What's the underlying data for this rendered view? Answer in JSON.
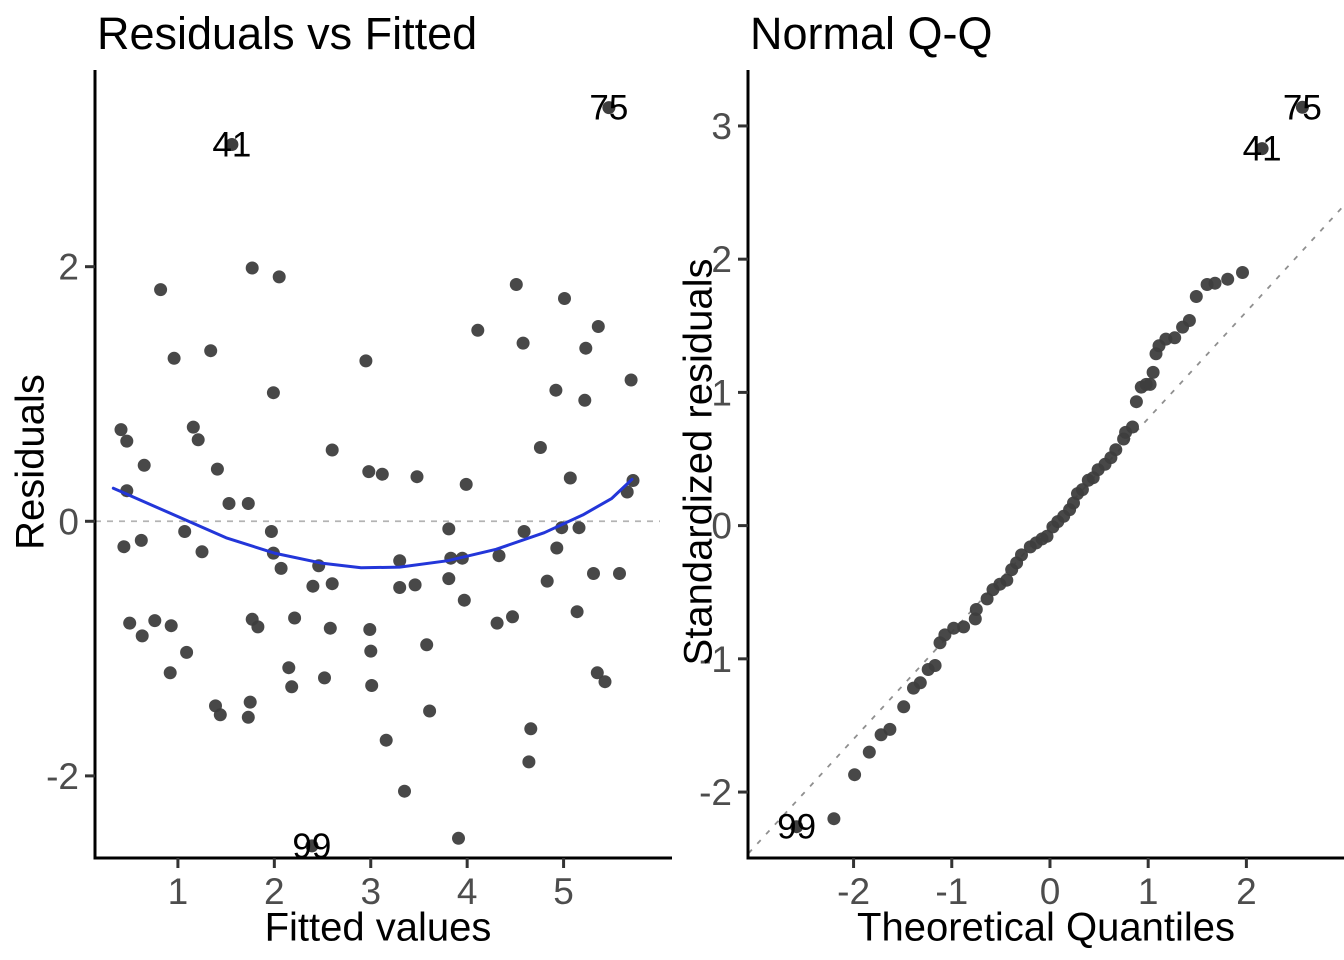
{
  "page": {
    "background": "#ffffff"
  },
  "colors": {
    "point": "#3e3e3e",
    "smooth_line": "#2336d9",
    "zero_dash": "#b3b3b3",
    "qq_ref_dash": "#8f8f8f",
    "axis_line": "#000000",
    "tick_mark": "#333333",
    "tick_label": "#4d4d4d",
    "title_text": "#000000",
    "point_label": "#000000"
  },
  "chart_data": [
    {
      "type": "scatter",
      "title": "Residuals vs Fitted",
      "xlabel": "Fitted values",
      "ylabel": "Residuals",
      "xlim": [
        0.14,
        6.0
      ],
      "ylim": [
        -2.645,
        3.545
      ],
      "x_ticks": [
        1,
        2,
        3,
        4,
        5
      ],
      "y_ticks": [
        -2,
        0,
        2
      ],
      "grid": false,
      "legend": "none",
      "point_color": "#3e3e3e",
      "points": [
        [
          1.77,
          1.99
        ],
        [
          2.05,
          1.92
        ],
        [
          0.82,
          1.82
        ],
        [
          0.96,
          1.28
        ],
        [
          1.34,
          1.34
        ],
        [
          1.99,
          1.01
        ],
        [
          2.95,
          1.26
        ],
        [
          4.11,
          1.5
        ],
        [
          4.51,
          1.86
        ],
        [
          4.58,
          1.4
        ],
        [
          4.92,
          1.03
        ],
        [
          5.01,
          1.75
        ],
        [
          5.23,
          1.36
        ],
        [
          5.36,
          1.53
        ],
        [
          5.7,
          1.11
        ],
        [
          5.22,
          0.95
        ],
        [
          4.76,
          0.58
        ],
        [
          5.07,
          0.34
        ],
        [
          5.72,
          0.32
        ],
        [
          5.66,
          0.23
        ],
        [
          0.41,
          0.72
        ],
        [
          1.16,
          0.74
        ],
        [
          0.47,
          0.63
        ],
        [
          1.21,
          0.64
        ],
        [
          0.65,
          0.44
        ],
        [
          1.41,
          0.41
        ],
        [
          0.47,
          0.24
        ],
        [
          2.6,
          0.56
        ],
        [
          2.98,
          0.39
        ],
        [
          3.12,
          0.37
        ],
        [
          3.48,
          0.35
        ],
        [
          3.99,
          0.29
        ],
        [
          3.81,
          -0.06
        ],
        [
          3.83,
          -0.29
        ],
        [
          3.3,
          -0.31
        ],
        [
          1.73,
          0.14
        ],
        [
          1.53,
          0.14
        ],
        [
          1.07,
          -0.08
        ],
        [
          0.44,
          -0.2
        ],
        [
          0.62,
          -0.15
        ],
        [
          1.97,
          -0.08
        ],
        [
          1.99,
          -0.25
        ],
        [
          1.25,
          -0.24
        ],
        [
          2.07,
          -0.37
        ],
        [
          2.46,
          -0.35
        ],
        [
          2.4,
          -0.51
        ],
        [
          2.6,
          -0.49
        ],
        [
          3.3,
          -0.52
        ],
        [
          3.46,
          -0.5
        ],
        [
          3.95,
          -0.29
        ],
        [
          4.33,
          -0.27
        ],
        [
          3.81,
          -0.45
        ],
        [
          4.59,
          -0.08
        ],
        [
          4.98,
          -0.05
        ],
        [
          5.16,
          -0.05
        ],
        [
          4.93,
          -0.21
        ],
        [
          4.83,
          -0.47
        ],
        [
          5.31,
          -0.41
        ],
        [
          5.58,
          -0.41
        ],
        [
          0.5,
          -0.8
        ],
        [
          0.63,
          -0.9
        ],
        [
          0.76,
          -0.78
        ],
        [
          0.93,
          -0.82
        ],
        [
          0.92,
          -1.19
        ],
        [
          1.09,
          -1.03
        ],
        [
          1.77,
          -0.77
        ],
        [
          1.83,
          -0.83
        ],
        [
          2.21,
          -0.76
        ],
        [
          2.15,
          -1.15
        ],
        [
          2.52,
          -1.23
        ],
        [
          1.75,
          -1.42
        ],
        [
          1.39,
          -1.45
        ],
        [
          1.44,
          -1.52
        ],
        [
          2.58,
          -0.84
        ],
        [
          3.0,
          -1.02
        ],
        [
          2.99,
          -0.85
        ],
        [
          3.58,
          -0.97
        ],
        [
          4.31,
          -0.8
        ],
        [
          4.47,
          -0.75
        ],
        [
          3.97,
          -0.62
        ],
        [
          5.14,
          -0.71
        ],
        [
          5.35,
          -1.19
        ],
        [
          5.43,
          -1.26
        ],
        [
          2.18,
          -1.3
        ],
        [
          3.01,
          -1.29
        ],
        [
          1.73,
          -1.54
        ],
        [
          3.61,
          -1.49
        ],
        [
          3.16,
          -1.72
        ],
        [
          4.66,
          -1.63
        ],
        [
          4.64,
          -1.89
        ],
        [
          3.35,
          -2.12
        ],
        [
          3.91,
          -2.49
        ]
      ],
      "labeled_points": [
        {
          "label": "41",
          "x": 1.56,
          "y": 2.96
        },
        {
          "label": "75",
          "x": 5.47,
          "y": 3.25
        },
        {
          "label": "99",
          "x": 2.39,
          "y": -2.55
        }
      ],
      "zero_line": {
        "y": 0,
        "dash": "6 6",
        "width": 1.8
      },
      "smooth_line": {
        "width": 3,
        "points": [
          [
            0.33,
            0.26
          ],
          [
            0.9,
            0.07
          ],
          [
            1.5,
            -0.13
          ],
          [
            2.0,
            -0.25
          ],
          [
            2.5,
            -0.33
          ],
          [
            2.9,
            -0.365
          ],
          [
            3.3,
            -0.36
          ],
          [
            3.8,
            -0.31
          ],
          [
            4.3,
            -0.22
          ],
          [
            4.8,
            -0.09
          ],
          [
            5.2,
            0.05
          ],
          [
            5.5,
            0.18
          ],
          [
            5.71,
            0.33
          ]
        ]
      }
    },
    {
      "type": "scatter",
      "title": "Normal Q-Q",
      "xlabel": "Theoretical Quantiles",
      "ylabel": "Standardized residuals",
      "xlim": [
        -3.075,
        2.994
      ],
      "ylim": [
        -2.495,
        3.42
      ],
      "x_ticks": [
        -2,
        -1,
        0,
        1,
        2
      ],
      "y_ticks": [
        -2,
        -1,
        0,
        1,
        2,
        3
      ],
      "grid": false,
      "legend": "none",
      "point_color": "#3e3e3e",
      "points": [
        [
          -2.2,
          -2.2
        ],
        [
          -1.99,
          -1.87
        ],
        [
          -1.84,
          -1.7
        ],
        [
          -1.72,
          -1.57
        ],
        [
          -1.63,
          -1.53
        ],
        [
          -1.49,
          -1.36
        ],
        [
          -1.39,
          -1.22
        ],
        [
          -1.32,
          -1.18
        ],
        [
          -1.24,
          -1.08
        ],
        [
          -1.17,
          -1.05
        ],
        [
          -1.12,
          -0.88
        ],
        [
          -1.07,
          -0.82
        ],
        [
          -0.98,
          -0.77
        ],
        [
          -0.88,
          -0.76
        ],
        [
          -0.76,
          -0.7
        ],
        [
          -0.75,
          -0.63
        ],
        [
          -0.64,
          -0.55
        ],
        [
          -0.58,
          -0.48
        ],
        [
          -0.51,
          -0.44
        ],
        [
          -0.44,
          -0.41
        ],
        [
          -0.39,
          -0.33
        ],
        [
          -0.34,
          -0.28
        ],
        [
          -0.29,
          -0.22
        ],
        [
          -0.2,
          -0.16
        ],
        [
          -0.14,
          -0.13
        ],
        [
          -0.08,
          -0.1
        ],
        [
          -0.03,
          -0.08
        ],
        [
          0.03,
          -0.01
        ],
        [
          0.08,
          0.03
        ],
        [
          0.14,
          0.07
        ],
        [
          0.2,
          0.12
        ],
        [
          0.24,
          0.17
        ],
        [
          0.28,
          0.24
        ],
        [
          0.33,
          0.27
        ],
        [
          0.39,
          0.34
        ],
        [
          0.44,
          0.36
        ],
        [
          0.49,
          0.42
        ],
        [
          0.56,
          0.46
        ],
        [
          0.62,
          0.51
        ],
        [
          0.67,
          0.57
        ],
        [
          0.75,
          0.65
        ],
        [
          0.77,
          0.7
        ],
        [
          0.84,
          0.74
        ],
        [
          0.88,
          0.93
        ],
        [
          0.93,
          1.04
        ],
        [
          0.98,
          1.06
        ],
        [
          1.02,
          1.06
        ],
        [
          1.05,
          1.15
        ],
        [
          1.08,
          1.29
        ],
        [
          1.11,
          1.35
        ],
        [
          1.18,
          1.4
        ],
        [
          1.27,
          1.41
        ],
        [
          1.35,
          1.49
        ],
        [
          1.42,
          1.54
        ],
        [
          1.49,
          1.72
        ],
        [
          1.6,
          1.81
        ],
        [
          1.68,
          1.82
        ],
        [
          1.81,
          1.85
        ],
        [
          1.96,
          1.9
        ]
      ],
      "labeled_points": [
        {
          "label": "99",
          "x": -2.58,
          "y": -2.26
        },
        {
          "label": "41",
          "x": 2.16,
          "y": 2.83
        },
        {
          "label": "75",
          "x": 2.57,
          "y": 3.14
        }
      ],
      "ref_line": {
        "from": [
          -3.07,
          -2.46
        ],
        "to": [
          2.99,
          2.4
        ],
        "dash": "5 8",
        "width": 1.8
      }
    }
  ]
}
